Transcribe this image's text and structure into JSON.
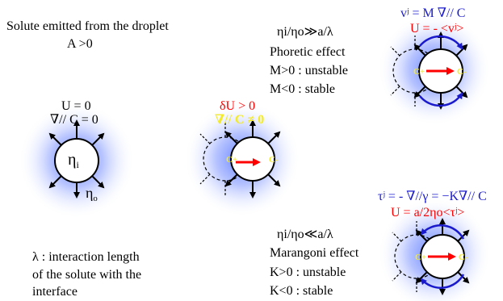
{
  "top_left": {
    "line1": "Solute emitted from the droplet",
    "line2": "A >0"
  },
  "droplet1": {
    "u_label": "U = 0",
    "grad_label": "∇// C = 0",
    "eta_i": "η",
    "eta_i_sub": "i",
    "eta_o": "η",
    "eta_o_sub": "o"
  },
  "droplet2": {
    "du_label": "δU > 0",
    "grad_label": "∇// C ≠ 0",
    "c_plus": "C+",
    "c_minus": "C-"
  },
  "phoretic": {
    "ratio": "ηi/ηo≫a/λ",
    "title": "Phoretic effect",
    "unstable": "M>0 : unstable",
    "stable": "M<0 : stable",
    "eq_v": "vʲ = M ∇// C",
    "eq_u": "U = - <vʲ>",
    "c_plus": "C+",
    "c_minus": "C-"
  },
  "marangoni": {
    "ratio": "ηi/ηo≪a/λ",
    "title": "Marangoni effect",
    "unstable": "K>0 : unstable",
    "stable": "K<0 : stable",
    "eq_tau": "τʲ = - ∇//γ = −K∇// C",
    "eq_u": "U = a/2ηo<τʲ>",
    "c_plus": "C+",
    "c_minus": "C-"
  },
  "lambda_note": {
    "line1": "λ : interaction length",
    "line2": "of the solute with the",
    "line3": "interface"
  },
  "colors": {
    "glow": "#5a78ff",
    "red": "#ff0000",
    "blue": "#1a1acc",
    "yellow": "#f2ea2a"
  }
}
